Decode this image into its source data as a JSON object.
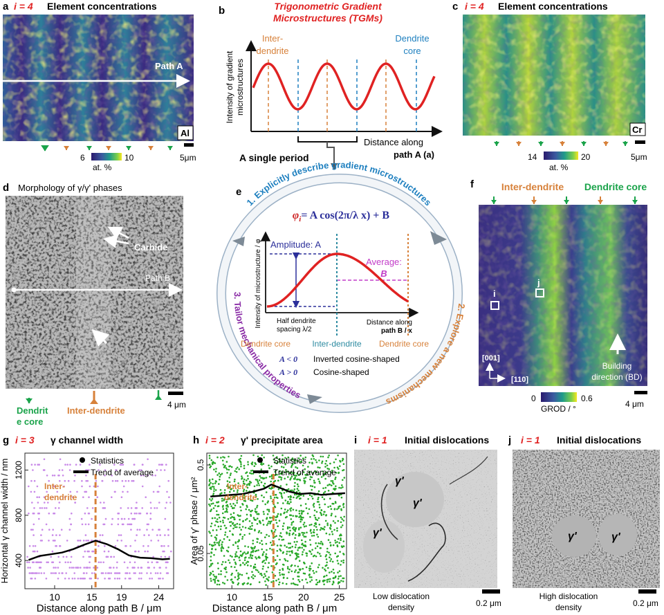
{
  "colors": {
    "red": "#e02222",
    "orange": "#d7813a",
    "blue": "#1d7fbf",
    "green": "#1aa34a",
    "purple": "#8a2ca6",
    "navy": "#2b2f9a",
    "magenta": "#c23cc8",
    "teal": "#2c8aa0",
    "dark_red": "#cc1f1f",
    "scatter_purple": "#c98ae8",
    "scatter_green": "#28a828"
  },
  "panel_a": {
    "letter": "a",
    "i_label": "i = 4",
    "title": "Element concentrations",
    "path_label": "Path A",
    "element": "Al",
    "cbar_min": "6",
    "cbar_max": "10",
    "cbar_unit": "at. %",
    "scale": "5μm"
  },
  "panel_b": {
    "letter": "b",
    "title_line1": "Trigonometric Gradient",
    "title_line2": "Microstructures (TGMs)",
    "ylabel_line1": "Intensity of gradient",
    "ylabel_line2": "microstructures",
    "inter_line1": "Inter-",
    "inter_line2": "dendrite",
    "core_line1": "Dendrite",
    "core_line2": "core",
    "xlabel_line1": "Distance along",
    "xlabel_line2": "path A (a)",
    "period_label": "A single period"
  },
  "panel_c": {
    "letter": "c",
    "i_label": "i = 4",
    "title": "Element concentrations",
    "element": "Cr",
    "cbar_min": "14",
    "cbar_max": "20",
    "cbar_unit": "at. %",
    "scale": "5μm"
  },
  "panel_d": {
    "letter": "d",
    "title": "Morphology of γ/γ' phases",
    "carbide": "Carbide",
    "path_label": "Path B",
    "scale": "4 μm",
    "core_line1": "Dendrit",
    "core_line2": "e core",
    "inter_label": "Inter-dendrite"
  },
  "panel_e": {
    "letter": "e",
    "step1": "1. Explicitly describe gradient microstructures",
    "step2": "2. Explore a new mechanisms",
    "step3": "3. Tailor mechanical properties",
    "eq_lhs": "φ",
    "eq_body": "= A cos(2π/λ x) + B",
    "ylabel": "Intensity of microstructure / φ",
    "amplitude": "Amplitude: A",
    "average_line1": "Average:",
    "average_line2": "B",
    "half_line1": "Half dendrite",
    "half_line2": "spacing λ/2",
    "dist_line1": "Distance along",
    "dist_line2": "path B / x",
    "tick_core_left": "Dendrite core",
    "tick_inter": "Inter-dendrite",
    "tick_core_right": "Dendrite core",
    "neg_cond": "A < 0",
    "neg_text": "Inverted cosine-shaped",
    "pos_cond": "A > 0",
    "pos_text": "Cosine-shaped"
  },
  "panel_f": {
    "letter": "f",
    "inter_label": "Inter-dendrite",
    "core_label": "Dendrite core",
    "marker_i": "i",
    "marker_j": "j",
    "axis_001": "[001]",
    "axis_110": "[110]",
    "bd_line1": "Building",
    "bd_line2": "direction (BD)",
    "cbar_min": "0",
    "cbar_max": "0.6",
    "cbar_unit": "GROD / °",
    "scale": "4 μm"
  },
  "panel_g": {
    "letter": "g",
    "i_label": "i = 3",
    "title": "γ channel width",
    "legend_stats": "Statistics",
    "legend_trend": "Trend of average",
    "inter_line1": "Inter-",
    "inter_line2": "dendrite",
    "ylabel": "Horizontal γ channel width / nm",
    "xlabel": "Distance along path B / μm",
    "xticks": [
      "10",
      "15",
      "19",
      "24"
    ],
    "yticks": [
      "400",
      "800",
      "1200"
    ]
  },
  "panel_h": {
    "letter": "h",
    "i_label": "i = 2",
    "title": "γ' precipitate area",
    "legend_stats": "Statistics",
    "legend_trend": "Trend of average",
    "inter_line1": "Inter-",
    "inter_line2": "dendrite",
    "ylabel": "Area of γ' phase / μm²",
    "xlabel": "Distance along path B / μm",
    "xticks": [
      "10",
      "15",
      "20",
      "25"
    ],
    "yticks": [
      "0.05",
      "0.5"
    ]
  },
  "panel_i": {
    "letter": "i",
    "i_label": "i = 1",
    "title": "Initial dislocations",
    "phase1": "γ'",
    "phase2": "γ'",
    "phase3": "γ'",
    "caption_line1": "Low dislocation",
    "caption_line2": "density",
    "scale": "0.2 μm"
  },
  "panel_j": {
    "letter": "j",
    "i_label": "i = 1",
    "title": "Initial dislocations",
    "phase1": "γ'",
    "phase2": "γ'",
    "caption_line1": "High dislocation",
    "caption_line2": "density",
    "scale": "0.2 μm"
  },
  "chart_data": [
    {
      "type": "scatter",
      "panel": "g",
      "title": "γ channel width",
      "xlabel": "Distance along path B / μm",
      "ylabel": "Horizontal γ channel width / nm",
      "xlim": [
        6,
        26
      ],
      "ylim": [
        150,
        1350
      ],
      "x_ticks": [
        10,
        15,
        19,
        24
      ],
      "y_ticks": [
        400,
        800,
        1200
      ],
      "series": [
        {
          "name": "Trend of average",
          "x": [
            6.5,
            8,
            9.5,
            11,
            12.5,
            14,
            15.5,
            17,
            18.5,
            20,
            21.5,
            23,
            24.5,
            25.5
          ],
          "y": [
            405,
            440,
            455,
            470,
            500,
            540,
            575,
            545,
            500,
            445,
            425,
            420,
            410,
            415
          ]
        }
      ],
      "annotation": {
        "text": "Inter-dendrite",
        "x": 15.5
      }
    },
    {
      "type": "scatter",
      "panel": "h",
      "title": "γ' precipitate area",
      "xlabel": "Distance along path B / μm",
      "ylabel": "Area of γ' phase / μm²",
      "xlim": [
        6.5,
        26
      ],
      "ylim": [
        0.02,
        0.68
      ],
      "x_ticks": [
        10,
        15,
        20,
        25
      ],
      "y_ticks": [
        0.05,
        0.5
      ],
      "series": [
        {
          "name": "Trend of average",
          "x": [
            7,
            8.5,
            10,
            11.5,
            13,
            14.5,
            15.5,
            16.5,
            18,
            19.5,
            21,
            22.5,
            24,
            25.8
          ],
          "y": [
            0.22,
            0.225,
            0.23,
            0.235,
            0.25,
            0.27,
            0.3,
            0.28,
            0.25,
            0.235,
            0.24,
            0.23,
            0.235,
            0.24
          ]
        }
      ],
      "annotation": {
        "text": "Inter-dendrite",
        "x": 15.8
      }
    },
    {
      "type": "line",
      "panel": "b",
      "title": "Trigonometric Gradient Microstructures (TGMs)",
      "xlabel": "Distance along path A (a)",
      "ylabel": "Intensity of gradient microstructures",
      "series": [
        {
          "name": "intensity",
          "periods": 3.2,
          "shape": "cosine"
        }
      ]
    },
    {
      "type": "line",
      "panel": "e",
      "xlabel": "Distance along path B / x",
      "ylabel": "Intensity of microstructure / φ",
      "x_ticks": [
        "Dendrite core",
        "Inter-dendrite",
        "Dendrite core"
      ],
      "series": [
        {
          "name": "φ",
          "shape": "cosine half period"
        }
      ]
    }
  ]
}
